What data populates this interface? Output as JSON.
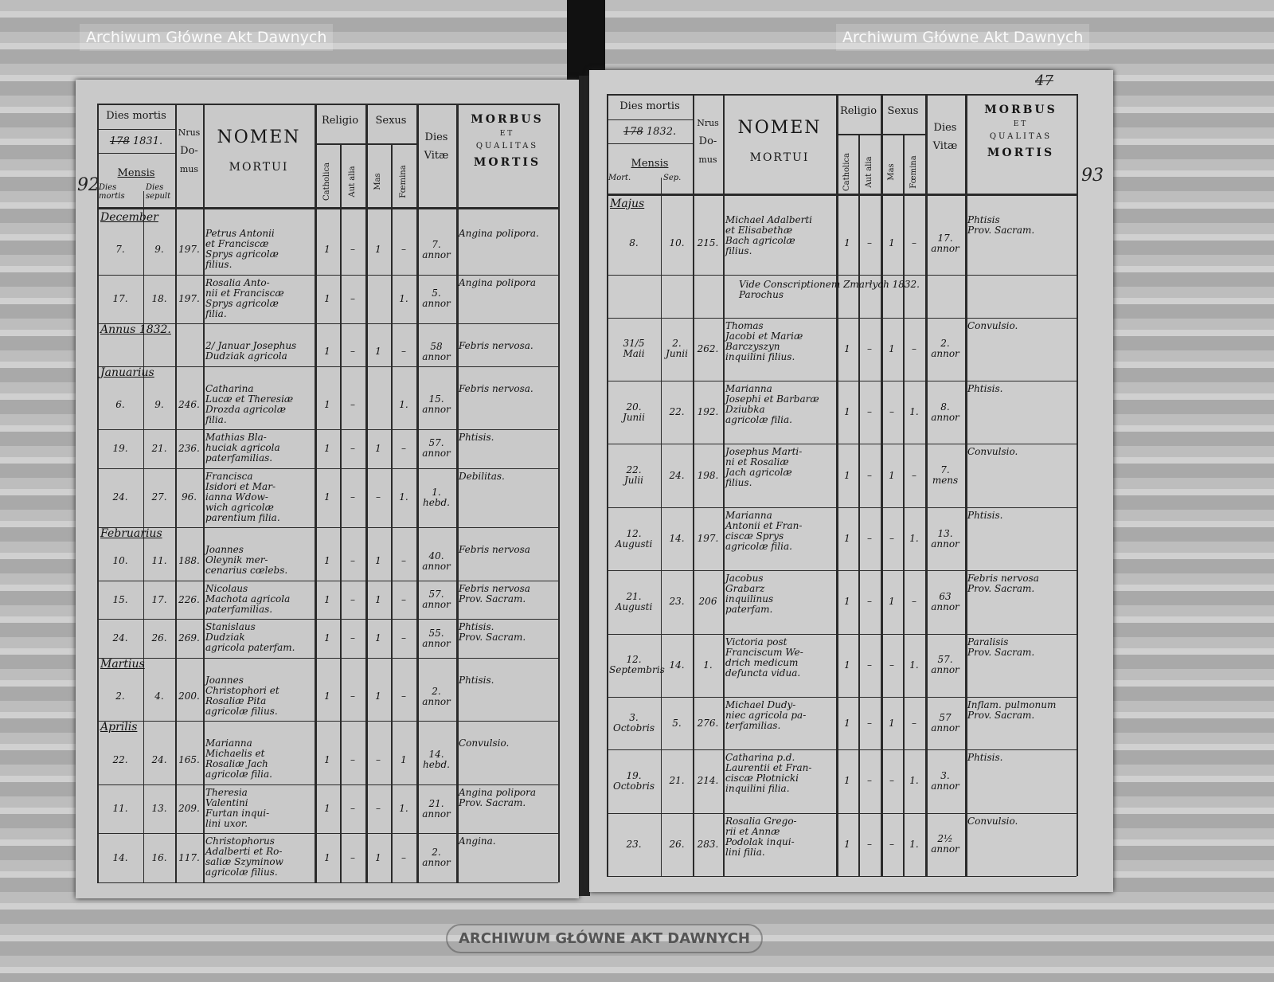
{
  "header": {
    "dies_mortis": "Dies mortis",
    "year_printed": "178",
    "mensis": "Mensis",
    "nrus": "Nrus",
    "domus1": "Do-",
    "domus2": "mus",
    "nomen": "NOMEN",
    "mortui": "MORTUI",
    "religio": "Religio",
    "sexus": "Sexus",
    "catholica": "Catholica",
    "aut_alia": "Aut alia",
    "mas": "Mas",
    "femina": "Fœmina",
    "dies_vitae1": "Dies",
    "dies_vitae2": "Vitæ",
    "morbus": "MORBUS",
    "et": "ET",
    "qualitas": "QUALITAS",
    "mortis": "MORTIS"
  },
  "left_page": {
    "page_number": "92",
    "year": "1831.",
    "sub_headers": [
      "Dies mortis",
      "Dies sepult"
    ],
    "months": [
      {
        "label": "December",
        "row": 0
      },
      {
        "label": "Annus 1832.",
        "row": 2
      },
      {
        "label": "Januarius",
        "row": 3
      },
      {
        "label": "Februarius",
        "row": 6
      },
      {
        "label": "Martius",
        "row": 9
      },
      {
        "label": "Aprilis",
        "row": 10
      }
    ],
    "rows": [
      {
        "mort": "7.",
        "sep": "9.",
        "domus": "197.",
        "nomen": "Petrus Antonii\net Franciscæ\nSprys agricolæ\nfilius.",
        "cath": "1",
        "alia": "–",
        "mas": "1",
        "fem": "–",
        "vitae": "7.\nannor",
        "morbus": "Angina polipora."
      },
      {
        "mort": "17.",
        "sep": "18.",
        "domus": "197.",
        "nomen": "Rosalia Anto-\nnii et Franciscæ\nSprys agricolæ\nfilia.",
        "cath": "1",
        "alia": "–",
        "mas": "",
        "fem": "1.",
        "vitae": "5.\nannor",
        "morbus": "Angina polipora"
      },
      {
        "mort": "",
        "sep": "",
        "domus": "",
        "nomen": "2/ Januar Josephus\nDudziak agricola",
        "cath": "1",
        "alia": "–",
        "mas": "1",
        "fem": "–",
        "vitae": "58\nannor",
        "morbus": "Febris nervosa."
      },
      {
        "mort": "6.",
        "sep": "9.",
        "domus": "246.",
        "nomen": "Catharina\nLucæ et Theresiæ\nDrozda agricolæ\nfilia.",
        "cath": "1",
        "alia": "–",
        "mas": "",
        "fem": "1.",
        "vitae": "15.\nannor",
        "morbus": "Febris nervosa."
      },
      {
        "mort": "19.",
        "sep": "21.",
        "domus": "236.",
        "nomen": "Mathias Bla-\nhuciak agricola\npaterfamilias.",
        "cath": "1",
        "alia": "–",
        "mas": "1",
        "fem": "–",
        "vitae": "57.\nannor",
        "morbus": "Phtisis."
      },
      {
        "mort": "24.",
        "sep": "27.",
        "domus": "96.",
        "nomen": "Francisca\nIsidori et Mar-\nianna Wdow-\nwich agricolæ\nparentium filia.",
        "cath": "1",
        "alia": "–",
        "mas": "–",
        "fem": "1.",
        "vitae": "1.\nhebd.",
        "morbus": "Debilitas."
      },
      {
        "mort": "10.",
        "sep": "11.",
        "domus": "188.",
        "nomen": "Joannes\nOleynik mer-\ncenarius cœlebs.",
        "cath": "1",
        "alia": "–",
        "mas": "1",
        "fem": "–",
        "vitae": "40.\nannor",
        "morbus": "Febris nervosa"
      },
      {
        "mort": "15.",
        "sep": "17.",
        "domus": "226.",
        "nomen": "Nicolaus\nMachota agricola\npaterfamilias.",
        "cath": "1",
        "alia": "–",
        "mas": "1",
        "fem": "–",
        "vitae": "57.\nannor",
        "morbus": "Febris nervosa\nProv. Sacram."
      },
      {
        "mort": "24.",
        "sep": "26.",
        "domus": "269.",
        "nomen": "Stanislaus\nDudziak\nagricola paterfam.",
        "cath": "1",
        "alia": "–",
        "mas": "1",
        "fem": "–",
        "vitae": "55.\nannor",
        "morbus": "Phtisis.\nProv. Sacram."
      },
      {
        "mort": "2.",
        "sep": "4.",
        "domus": "200.",
        "nomen": "Joannes\nChristophori et\nRosaliæ Pita\nagricolæ filius.",
        "cath": "1",
        "alia": "–",
        "mas": "1",
        "fem": "–",
        "vitae": "2.\nannor",
        "morbus": "Phtisis."
      },
      {
        "mort": "22.",
        "sep": "24.",
        "domus": "165.",
        "nomen": "Marianna\nMichaelis et\nRosaliæ Jach\nagricolæ filia.",
        "cath": "1",
        "alia": "–",
        "mas": "–",
        "fem": "1",
        "vitae": "14.\nhebd.",
        "morbus": "Convulsio."
      },
      {
        "mort": "11.",
        "sep": "13.",
        "domus": "209.",
        "nomen": "Theresia\nValentini\nFurtan inqui-\nlini uxor.",
        "cath": "1",
        "alia": "–",
        "mas": "–",
        "fem": "1.",
        "vitae": "21.\nannor",
        "morbus": "Angina polipora\nProv. Sacram."
      },
      {
        "mort": "14.",
        "sep": "16.",
        "domus": "117.",
        "nomen": "Christophorus\nAdalberti et Ro-\nsaliæ Szyminow\nagricolæ filius.",
        "cath": "1",
        "alia": "–",
        "mas": "1",
        "fem": "–",
        "vitae": "2.\nannor",
        "morbus": "Angina."
      }
    ]
  },
  "right_page": {
    "page_number": "93",
    "corner_note": "47",
    "year": "1832.",
    "sub_headers": [
      "Mort.",
      "Sep."
    ],
    "months": [
      {
        "label": "Majus",
        "row": 0
      }
    ],
    "rows": [
      {
        "mort": "8.",
        "sep": "10.",
        "domus": "215.",
        "nomen": "Michael Adalberti\net Elisabethæ\nBach agricolæ\nfilius.",
        "cath": "1",
        "alia": "–",
        "mas": "1",
        "fem": "–",
        "vitae": "17.\nannor",
        "morbus": "Phtisis\nProv. Sacram."
      },
      {
        "note": "Vide Conscriptionem Zmarłych 1832.\nParochus"
      },
      {
        "mort": "31/5\nMaii",
        "sep": "2.\nJunii",
        "domus": "262.",
        "nomen": "Thomas\nJacobi et Mariæ\nBarczyszyn\ninquilini filius.",
        "cath": "1",
        "alia": "–",
        "mas": "1",
        "fem": "–",
        "vitae": "2.\nannor",
        "morbus": "Convulsio."
      },
      {
        "mort": "20.\nJunii",
        "sep": "22.",
        "domus": "192.",
        "nomen": "Marianna\nJosephi et Barbaræ\nDziubka\nagricolæ filia.",
        "cath": "1",
        "alia": "–",
        "mas": "–",
        "fem": "1.",
        "vitae": "8.\nannor",
        "morbus": "Phtisis."
      },
      {
        "mort": "22.\nJulii",
        "sep": "24.",
        "domus": "198.",
        "nomen": "Josephus Marti-\nni et Rosaliæ\nJach agricolæ\nfilius.",
        "cath": "1",
        "alia": "–",
        "mas": "1",
        "fem": "–",
        "vitae": "7.\nmens",
        "morbus": "Convulsio."
      },
      {
        "mort": "12.\nAugusti",
        "sep": "14.",
        "domus": "197.",
        "nomen": "Marianna\nAntonii et Fran-\nciscæ Sprys\nagricolæ filia.",
        "cath": "1",
        "alia": "–",
        "mas": "–",
        "fem": "1.",
        "vitae": "13.\nannor",
        "morbus": "Phtisis."
      },
      {
        "mort": "21.\nAugusti",
        "sep": "23.",
        "domus": "206",
        "nomen": "Jacobus\nGrabarz\ninquilinus\npaterfam.",
        "cath": "1",
        "alia": "–",
        "mas": "1",
        "fem": "–",
        "vitae": "63\nannor",
        "morbus": "Febris nervosa\nProv. Sacram."
      },
      {
        "mort": "12.\nSeptembris",
        "sep": "14.",
        "domus": "1.",
        "nomen": "Victoria post\nFranciscum We-\ndrich medicum\ndefuncta vidua.",
        "cath": "1",
        "alia": "–",
        "mas": "–",
        "fem": "1.",
        "vitae": "57.\nannor",
        "morbus": "Paralisis\nProv. Sacram."
      },
      {
        "mort": "3.\nOctobris",
        "sep": "5.",
        "domus": "276.",
        "nomen": "Michael Dudy-\nniec agricola pa-\nterfamilias.",
        "cath": "1",
        "alia": "–",
        "mas": "1",
        "fem": "–",
        "vitae": "57\nannor",
        "morbus": "Inflam. pulmonum\nProv. Sacram."
      },
      {
        "mort": "19.\nOctobris",
        "sep": "21.",
        "domus": "214.",
        "nomen": "Catharina p.d.\nLaurentii et Fran-\nciscæ Płotnicki\ninquilini filia.",
        "cath": "1",
        "alia": "–",
        "mas": "–",
        "fem": "1.",
        "vitae": "3.\nannor",
        "morbus": "Phtisis."
      },
      {
        "mort": "23.",
        "sep": "26.",
        "domus": "283.",
        "nomen": "Rosalia Grego-\nrii et Annæ\nPodolak inqui-\nlini filia.",
        "cath": "1",
        "alia": "–",
        "mas": "–",
        "fem": "1.",
        "vitae": "2½\nannor",
        "morbus": "Convulsio."
      }
    ]
  },
  "watermarks": [
    "Archiwum Główne Akt Dawnych",
    "Archiwum Główne Akt Dawnych"
  ],
  "stamp": "ARCHIWUM GŁÓWNE AKT DAWNYCH"
}
